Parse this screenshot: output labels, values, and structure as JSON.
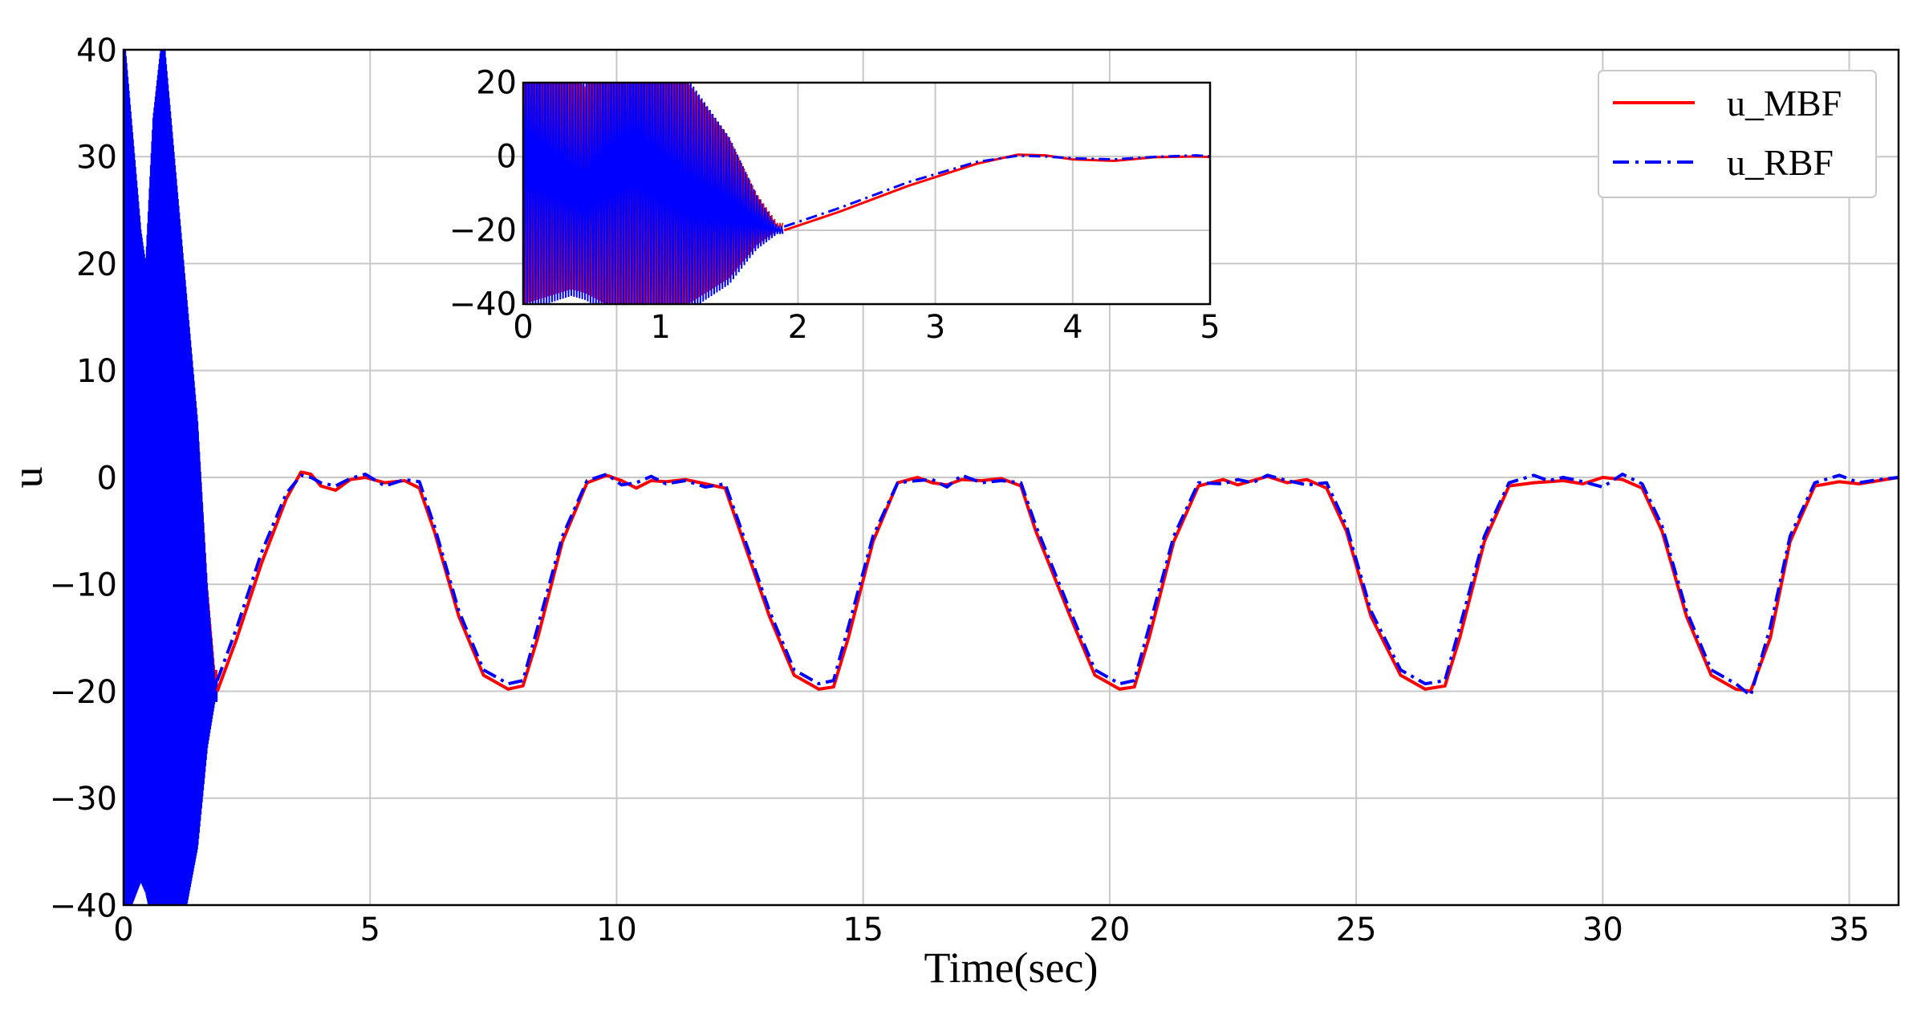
{
  "chart_data": {
    "type": "line",
    "main": {
      "xlabel": "Time(sec)",
      "ylabel": "u",
      "xlim": [
        0,
        36
      ],
      "ylim": [
        -40,
        40
      ],
      "xticks": [
        0,
        5,
        10,
        15,
        20,
        25,
        30,
        35
      ],
      "yticks": [
        -40,
        -30,
        -20,
        -10,
        0,
        10,
        20,
        30,
        40
      ],
      "grid": true,
      "legend_position": "top-right"
    },
    "inset": {
      "xlim": [
        0,
        5
      ],
      "ylim": [
        -40,
        20
      ],
      "xticks": [
        0,
        1,
        2,
        3,
        4,
        5
      ],
      "yticks": [
        -40,
        -20,
        0,
        20
      ],
      "grid": true,
      "position": "top-center"
    },
    "transient": {
      "t_range": [
        0,
        1.9
      ],
      "description_envelope_upper": [
        [
          0.0,
          40
        ],
        [
          0.35,
          22
        ],
        [
          0.45,
          19
        ],
        [
          0.6,
          32
        ],
        [
          0.8,
          40
        ],
        [
          1.2,
          20
        ],
        [
          1.5,
          5
        ],
        [
          1.7,
          -10
        ],
        [
          1.85,
          -18
        ]
      ],
      "description_envelope_lower": [
        [
          0.0,
          -40
        ],
        [
          0.35,
          -36
        ],
        [
          0.45,
          -37
        ],
        [
          0.6,
          -40
        ],
        [
          1.2,
          -40
        ],
        [
          1.5,
          -33
        ],
        [
          1.7,
          -24
        ],
        [
          1.85,
          -20
        ]
      ]
    },
    "series": [
      {
        "name": "u_MBF",
        "color": "#ff0000",
        "style": "solid",
        "x": [
          1.9,
          2.3,
          2.8,
          3.3,
          3.6,
          3.8,
          4.0,
          4.3,
          4.6,
          4.9,
          5.3,
          5.7,
          6.0,
          6.3,
          6.8,
          7.3,
          7.8,
          8.1,
          8.4,
          8.9,
          9.4,
          9.8,
          10.1,
          10.4,
          10.7,
          11.0,
          11.4,
          11.8,
          12.2,
          12.5,
          13.1,
          13.6,
          14.1,
          14.4,
          14.7,
          15.2,
          15.7,
          16.1,
          16.4,
          16.7,
          17.0,
          17.4,
          17.8,
          18.2,
          18.5,
          19.2,
          19.7,
          20.2,
          20.5,
          20.8,
          21.3,
          21.8,
          22.3,
          22.6,
          22.9,
          23.2,
          23.6,
          24.0,
          24.4,
          24.8,
          25.3,
          25.9,
          26.4,
          26.8,
          27.1,
          27.6,
          28.1,
          28.6,
          28.9,
          29.2,
          29.6,
          30.0,
          30.4,
          30.8,
          31.2,
          31.7,
          32.2,
          32.7,
          33.0,
          33.4,
          33.8,
          34.3,
          34.8,
          35.2,
          35.6,
          36.0
        ],
        "y": [
          -20,
          -15,
          -8,
          -2,
          0.5,
          0.3,
          -0.8,
          -1.2,
          -0.2,
          0.0,
          -0.5,
          -0.3,
          -1.0,
          -5,
          -13,
          -18.5,
          -19.8,
          -19.5,
          -15,
          -6,
          -0.5,
          0.2,
          -0.3,
          -1.0,
          -0.3,
          -0.4,
          -0.2,
          -0.6,
          -1.0,
          -5,
          -13,
          -18.5,
          -19.8,
          -19.6,
          -15,
          -6,
          -0.5,
          0.0,
          -0.5,
          -0.7,
          -0.2,
          -0.3,
          -0.1,
          -0.8,
          -5,
          -13,
          -18.5,
          -19.8,
          -19.6,
          -15,
          -6,
          -0.8,
          -0.2,
          -0.7,
          -0.3,
          0.1,
          -0.5,
          -0.2,
          -1.0,
          -5,
          -13,
          -18.5,
          -19.8,
          -19.5,
          -15,
          -6,
          -0.8,
          -0.5,
          -0.4,
          -0.3,
          -0.6,
          0.0,
          -0.2,
          -1.0,
          -5,
          -13,
          -18.5,
          -19.8,
          -20.0,
          -15,
          -6,
          -0.8,
          -0.4,
          -0.6,
          -0.3,
          0.0
        ]
      },
      {
        "name": "u_RBF",
        "color": "#0000ff",
        "style": "dashdot",
        "x": [
          1.9,
          2.3,
          2.8,
          3.3,
          3.6,
          3.8,
          4.0,
          4.3,
          4.6,
          4.9,
          5.3,
          5.7,
          6.0,
          6.3,
          6.8,
          7.3,
          7.8,
          8.1,
          8.4,
          8.9,
          9.4,
          9.8,
          10.1,
          10.4,
          10.7,
          11.0,
          11.4,
          11.8,
          12.2,
          12.5,
          13.1,
          13.6,
          14.1,
          14.4,
          14.7,
          15.2,
          15.7,
          16.1,
          16.4,
          16.7,
          17.0,
          17.4,
          17.8,
          18.2,
          18.5,
          19.2,
          19.7,
          20.2,
          20.5,
          20.8,
          21.3,
          21.8,
          22.3,
          22.6,
          22.9,
          23.2,
          23.6,
          24.0,
          24.4,
          24.8,
          25.3,
          25.9,
          26.4,
          26.8,
          27.1,
          27.6,
          28.1,
          28.6,
          28.9,
          29.2,
          29.6,
          30.0,
          30.4,
          30.8,
          31.2,
          31.7,
          32.2,
          32.7,
          33.0,
          33.4,
          33.8,
          34.3,
          34.8,
          35.2,
          35.6,
          36.0
        ],
        "y": [
          -19,
          -14,
          -7,
          -1.5,
          0.2,
          0.0,
          -0.5,
          -0.8,
          -0.1,
          0.3,
          -0.8,
          -0.2,
          -0.4,
          -4.5,
          -12.5,
          -18,
          -19.3,
          -19.0,
          -14,
          -5.5,
          -0.3,
          0.3,
          -0.7,
          -0.5,
          0.1,
          -0.6,
          -0.3,
          -0.9,
          -0.6,
          -4.5,
          -12.5,
          -18,
          -19.3,
          -19.0,
          -14,
          -5.5,
          -0.5,
          -0.3,
          -0.2,
          -0.9,
          0.2,
          -0.5,
          -0.3,
          -0.5,
          -4.5,
          -12.5,
          -18,
          -19.3,
          -19.0,
          -14,
          -5.5,
          -0.5,
          -0.6,
          -0.2,
          -0.5,
          0.2,
          -0.3,
          -0.7,
          -0.5,
          -4.5,
          -12.5,
          -18,
          -19.3,
          -19.0,
          -14,
          -5.5,
          -0.5,
          0.2,
          -0.3,
          0.0,
          -0.4,
          -0.9,
          0.3,
          -0.6,
          -4.5,
          -12.5,
          -18,
          -19.3,
          -20.4,
          -14,
          -5.5,
          -0.5,
          0.2,
          -0.5,
          -0.2,
          0.0
        ]
      }
    ],
    "legend": [
      {
        "label": "u_MBF",
        "color": "#ff0000",
        "style": "solid"
      },
      {
        "label": "u_RBF",
        "color": "#0000ff",
        "style": "dashdot"
      }
    ]
  },
  "labels": {
    "main_xticks": [
      "0",
      "5",
      "10",
      "15",
      "20",
      "25",
      "30",
      "35"
    ],
    "main_yticks": [
      "−40",
      "−30",
      "−20",
      "−10",
      "0",
      "10",
      "20",
      "30",
      "40"
    ],
    "inset_xticks": [
      "0",
      "1",
      "2",
      "3",
      "4",
      "5"
    ],
    "inset_yticks": [
      "−40",
      "−20",
      "0",
      "20"
    ]
  }
}
